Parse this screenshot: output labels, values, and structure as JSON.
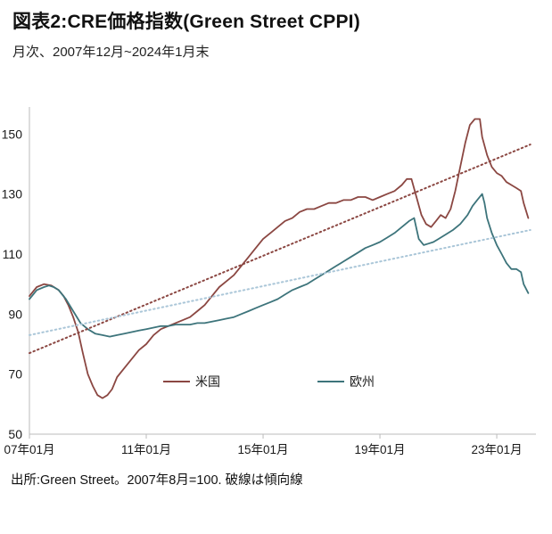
{
  "header": {
    "title": "図表2:CRE価格指数(Green Street CPPI)",
    "subtitle": "月次、2007年12月~2024年1月末"
  },
  "footer": {
    "source": "出所:Green Street。2007年8月=100. 破線は傾向線"
  },
  "colors": {
    "us": "#8b4742",
    "eu": "#3d747b",
    "us_trend": "#8b4742",
    "eu_trend": "#aac6d8",
    "axis": "#bbbbbb",
    "text": "#1a1a1a"
  },
  "chart_data": {
    "type": "line",
    "title": "CRE価格指数(Green Street CPPI)",
    "subtitle": "月次、2007年12月~2024年1月末",
    "source": "出所:Green Street。2007年8月=100. 破線は傾向線",
    "xlabel": "",
    "ylabel": "",
    "grid": false,
    "legend_position": "inside-bottom",
    "ylim": [
      50,
      159
    ],
    "xlim": [
      2007.0,
      2024.25
    ],
    "y_ticks": [
      50,
      70,
      90,
      110,
      130,
      150
    ],
    "x_ticks": [
      {
        "year": 2007.0,
        "label": "07年01月"
      },
      {
        "year": 2011.0,
        "label": "11年01月"
      },
      {
        "year": 2015.0,
        "label": "15年01月"
      },
      {
        "year": 2019.0,
        "label": "19年01月"
      },
      {
        "year": 2023.0,
        "label": "23年01月"
      }
    ],
    "series": [
      {
        "id": "us",
        "name": "米国",
        "color": "#8b4742",
        "dashed": false,
        "points": [
          [
            2007.0,
            96
          ],
          [
            2007.25,
            99
          ],
          [
            2007.5,
            100
          ],
          [
            2007.75,
            99.5
          ],
          [
            2008.0,
            98
          ],
          [
            2008.17,
            96
          ],
          [
            2008.33,
            93
          ],
          [
            2008.5,
            89
          ],
          [
            2008.67,
            84
          ],
          [
            2008.83,
            77
          ],
          [
            2009.0,
            70
          ],
          [
            2009.17,
            66
          ],
          [
            2009.33,
            63
          ],
          [
            2009.5,
            62
          ],
          [
            2009.67,
            63
          ],
          [
            2009.83,
            65
          ],
          [
            2010.0,
            69
          ],
          [
            2010.25,
            72
          ],
          [
            2010.5,
            75
          ],
          [
            2010.75,
            78
          ],
          [
            2011.0,
            80
          ],
          [
            2011.25,
            83
          ],
          [
            2011.5,
            85
          ],
          [
            2011.75,
            86
          ],
          [
            2012.0,
            87
          ],
          [
            2012.25,
            88
          ],
          [
            2012.5,
            89
          ],
          [
            2012.75,
            91
          ],
          [
            2013.0,
            93
          ],
          [
            2013.25,
            96
          ],
          [
            2013.5,
            99
          ],
          [
            2013.75,
            101
          ],
          [
            2014.0,
            103
          ],
          [
            2014.25,
            106
          ],
          [
            2014.5,
            109
          ],
          [
            2014.75,
            112
          ],
          [
            2015.0,
            115
          ],
          [
            2015.25,
            117
          ],
          [
            2015.5,
            119
          ],
          [
            2015.75,
            121
          ],
          [
            2016.0,
            122
          ],
          [
            2016.25,
            124
          ],
          [
            2016.5,
            125
          ],
          [
            2016.75,
            125
          ],
          [
            2017.0,
            126
          ],
          [
            2017.25,
            127
          ],
          [
            2017.5,
            127
          ],
          [
            2017.75,
            128
          ],
          [
            2018.0,
            128
          ],
          [
            2018.25,
            129
          ],
          [
            2018.5,
            129
          ],
          [
            2018.75,
            128
          ],
          [
            2019.0,
            129
          ],
          [
            2019.25,
            130
          ],
          [
            2019.5,
            131
          ],
          [
            2019.75,
            133
          ],
          [
            2019.92,
            135
          ],
          [
            2020.08,
            135
          ],
          [
            2020.25,
            129
          ],
          [
            2020.42,
            123
          ],
          [
            2020.58,
            120
          ],
          [
            2020.75,
            119
          ],
          [
            2020.92,
            121
          ],
          [
            2021.08,
            123
          ],
          [
            2021.25,
            122
          ],
          [
            2021.42,
            125
          ],
          [
            2021.58,
            131
          ],
          [
            2021.75,
            139
          ],
          [
            2021.92,
            147
          ],
          [
            2022.08,
            153
          ],
          [
            2022.25,
            155
          ],
          [
            2022.42,
            155
          ],
          [
            2022.5,
            149
          ],
          [
            2022.67,
            143
          ],
          [
            2022.83,
            139
          ],
          [
            2023.0,
            137
          ],
          [
            2023.17,
            136
          ],
          [
            2023.33,
            134
          ],
          [
            2023.5,
            133
          ],
          [
            2023.67,
            132
          ],
          [
            2023.83,
            131
          ],
          [
            2023.92,
            127
          ],
          [
            2024.08,
            122
          ]
        ]
      },
      {
        "id": "eu",
        "name": "欧州",
        "color": "#3d747b",
        "dashed": false,
        "points": [
          [
            2007.0,
            95
          ],
          [
            2007.25,
            98
          ],
          [
            2007.5,
            99
          ],
          [
            2007.67,
            99.5
          ],
          [
            2007.83,
            99
          ],
          [
            2008.0,
            98
          ],
          [
            2008.25,
            95
          ],
          [
            2008.5,
            91
          ],
          [
            2008.75,
            87
          ],
          [
            2009.0,
            85
          ],
          [
            2009.25,
            83.5
          ],
          [
            2009.5,
            83
          ],
          [
            2009.75,
            82.5
          ],
          [
            2010.0,
            83
          ],
          [
            2010.25,
            83.5
          ],
          [
            2010.5,
            84
          ],
          [
            2010.75,
            84.5
          ],
          [
            2011.0,
            85
          ],
          [
            2011.25,
            85.5
          ],
          [
            2011.5,
            86
          ],
          [
            2011.75,
            86
          ],
          [
            2012.0,
            86.5
          ],
          [
            2012.25,
            86.5
          ],
          [
            2012.5,
            86.5
          ],
          [
            2012.75,
            87
          ],
          [
            2013.0,
            87
          ],
          [
            2013.25,
            87.5
          ],
          [
            2013.5,
            88
          ],
          [
            2013.75,
            88.5
          ],
          [
            2014.0,
            89
          ],
          [
            2014.25,
            90
          ],
          [
            2014.5,
            91
          ],
          [
            2014.75,
            92
          ],
          [
            2015.0,
            93
          ],
          [
            2015.25,
            94
          ],
          [
            2015.5,
            95
          ],
          [
            2015.75,
            96.5
          ],
          [
            2016.0,
            98
          ],
          [
            2016.25,
            99
          ],
          [
            2016.5,
            100
          ],
          [
            2016.75,
            101.5
          ],
          [
            2017.0,
            103
          ],
          [
            2017.25,
            104.5
          ],
          [
            2017.5,
            106
          ],
          [
            2017.75,
            107.5
          ],
          [
            2018.0,
            109
          ],
          [
            2018.25,
            110.5
          ],
          [
            2018.5,
            112
          ],
          [
            2018.75,
            113
          ],
          [
            2019.0,
            114
          ],
          [
            2019.25,
            115.5
          ],
          [
            2019.5,
            117
          ],
          [
            2019.75,
            119
          ],
          [
            2020.0,
            121
          ],
          [
            2020.17,
            122
          ],
          [
            2020.33,
            115
          ],
          [
            2020.5,
            113
          ],
          [
            2020.67,
            113.5
          ],
          [
            2020.83,
            114
          ],
          [
            2021.0,
            115
          ],
          [
            2021.25,
            116.5
          ],
          [
            2021.5,
            118
          ],
          [
            2021.75,
            120
          ],
          [
            2022.0,
            123
          ],
          [
            2022.17,
            126
          ],
          [
            2022.33,
            128
          ],
          [
            2022.5,
            130
          ],
          [
            2022.58,
            127
          ],
          [
            2022.67,
            122
          ],
          [
            2022.83,
            117
          ],
          [
            2023.0,
            113
          ],
          [
            2023.17,
            110
          ],
          [
            2023.33,
            107
          ],
          [
            2023.5,
            105
          ],
          [
            2023.67,
            105
          ],
          [
            2023.83,
            104
          ],
          [
            2023.92,
            100
          ],
          [
            2024.08,
            97
          ]
        ]
      },
      {
        "id": "us-trend",
        "name": "米国傾向線",
        "color": "#8b4742",
        "dashed": true,
        "points": [
          [
            2007.0,
            77
          ],
          [
            2024.15,
            146.5
          ]
        ]
      },
      {
        "id": "eu-trend",
        "name": "欧州傾向線",
        "color": "#aac6d8",
        "dashed": true,
        "points": [
          [
            2007.0,
            83
          ],
          [
            2024.15,
            118
          ]
        ]
      }
    ],
    "legend": [
      {
        "label": "米国",
        "color": "#8b4742"
      },
      {
        "label": "欧州",
        "color": "#3d747b"
      }
    ]
  }
}
